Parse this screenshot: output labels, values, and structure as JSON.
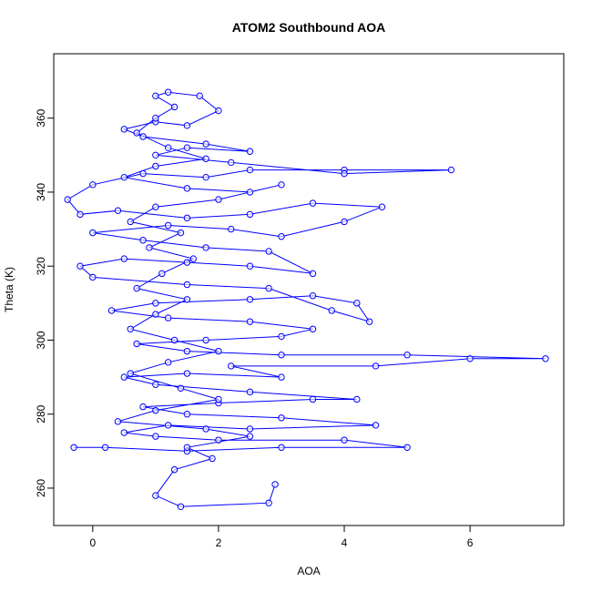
{
  "chart_data": {
    "type": "scatter",
    "title": "ATOM2 Southbound AOA",
    "x_label": "AOA",
    "y_label": "Theta (K)",
    "color": "#0000ff",
    "line": true,
    "grid": false,
    "xlim": [
      -0.62,
      7.49
    ],
    "ylim": [
      249.9,
      377.4
    ],
    "xticks": [
      0,
      2,
      4,
      6
    ],
    "yticks": [
      260,
      280,
      300,
      320,
      340,
      360
    ],
    "x": [
      -0.3,
      0.2,
      1.5,
      3.0,
      5.0,
      4.0,
      2.0,
      1.0,
      0.5,
      1.2,
      2.5,
      4.5,
      3.0,
      1.5,
      0.8,
      2.0,
      3.5,
      4.2,
      2.5,
      1.0,
      0.5,
      1.5,
      3.0,
      2.2,
      4.5,
      6.0,
      7.2,
      5.0,
      3.0,
      1.5,
      0.7,
      1.8,
      3.0,
      3.5,
      2.5,
      1.2,
      0.3,
      1.0,
      2.5,
      3.5,
      4.2,
      4.4,
      3.8,
      2.8,
      1.5,
      0.0,
      -0.2,
      0.5,
      1.5,
      2.5,
      3.5,
      2.8,
      1.8,
      0.8,
      0.0,
      1.2,
      2.2,
      3.0,
      4.0,
      4.6,
      3.5,
      2.5,
      1.5,
      0.4,
      -0.2,
      -0.4,
      0.0,
      0.8,
      1.8,
      2.5,
      4.0,
      5.7,
      4.0,
      2.2,
      1.0,
      1.5,
      2.5,
      1.8,
      0.8,
      0.5,
      1.0,
      1.5,
      2.0,
      1.7,
      1.2,
      1.0,
      1.3,
      1.0,
      0.7,
      1.2,
      1.8,
      1.0,
      0.5,
      1.5,
      2.5,
      3.0,
      2.0,
      1.0,
      0.6,
      1.4,
      0.9,
      1.6,
      1.1,
      0.7,
      1.5,
      1.0,
      0.6,
      1.3,
      2.0,
      1.2,
      0.6,
      1.4,
      2.0,
      1.0,
      0.4,
      1.8,
      2.5,
      1.5,
      1.9,
      1.3,
      1.0,
      1.4,
      2.8,
      2.9
    ],
    "values": [
      271,
      271,
      270,
      271,
      271,
      273,
      273,
      274,
      275,
      277,
      276,
      277,
      279,
      280,
      282,
      283,
      284,
      284,
      286,
      288,
      290,
      291,
      290,
      293,
      293,
      295,
      295,
      296,
      296,
      297,
      299,
      300,
      301,
      303,
      305,
      306,
      308,
      310,
      311,
      312,
      310,
      305,
      308,
      314,
      315,
      317,
      320,
      322,
      321,
      320,
      318,
      324,
      325,
      327,
      329,
      331,
      330,
      328,
      332,
      336,
      337,
      334,
      333,
      335,
      334,
      338,
      342,
      345,
      344,
      346,
      346,
      346,
      345,
      348,
      350,
      352,
      351,
      353,
      355,
      357,
      359,
      358,
      362,
      366,
      367,
      366,
      363,
      360,
      356,
      352,
      349,
      347,
      344,
      341,
      340,
      342,
      338,
      336,
      332,
      329,
      325,
      322,
      318,
      314,
      311,
      307,
      303,
      300,
      297,
      294,
      291,
      287,
      284,
      281,
      278,
      276,
      274,
      271,
      268,
      265,
      258,
      255,
      256,
      261
    ]
  }
}
